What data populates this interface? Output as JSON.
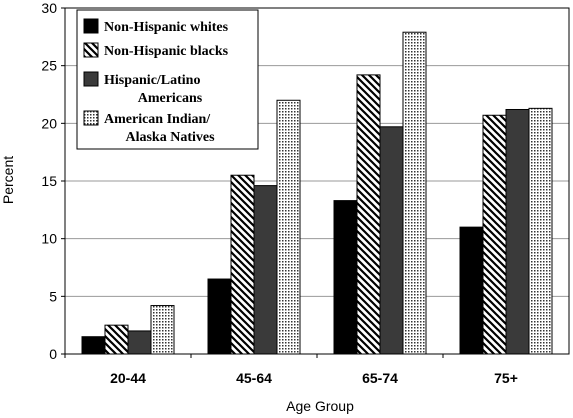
{
  "chart_data": {
    "type": "bar",
    "xlabel": "Age Group",
    "ylabel": "Percent",
    "categories": [
      "20-44",
      "45-64",
      "65-74",
      "75+"
    ],
    "y_ticks": [
      {
        "label": "0",
        "value": 0
      },
      {
        "label": "5",
        "value": 5
      },
      {
        "label": "10",
        "value": 10
      },
      {
        "label": "15",
        "value": 15
      },
      {
        "label": "20",
        "value": 20
      },
      {
        "label": "25",
        "value": 25
      },
      {
        "label": "30",
        "value": 30
      }
    ],
    "ylim": [
      0,
      30
    ],
    "grid": true,
    "legend_position": "top-left",
    "series": [
      {
        "name": "Non-Hispanic whites",
        "lines": [
          "Non-Hispanic whites"
        ],
        "pattern": "solid-black",
        "values": [
          1.5,
          6.5,
          13.3,
          11.0
        ]
      },
      {
        "name": "Non-Hispanic blacks",
        "lines": [
          "Non-Hispanic blacks"
        ],
        "pattern": "diagonal-hatch",
        "values": [
          2.5,
          15.5,
          24.2,
          20.7
        ]
      },
      {
        "name": "Hispanic/Latino Americans",
        "lines": [
          "Hispanic/Latino",
          "Americans"
        ],
        "pattern": "solid-dark-gray",
        "values": [
          2.0,
          14.6,
          19.7,
          21.2
        ]
      },
      {
        "name": "American Indian/Alaska Natives",
        "lines": [
          "American Indian/",
          "Alaska Natives"
        ],
        "pattern": "dotted",
        "values": [
          4.2,
          22.0,
          27.9,
          21.3
        ]
      }
    ],
    "colors": {
      "whites": "#000000",
      "hispanic": "#3a3a3a",
      "grid": "#9a9a9a"
    }
  }
}
